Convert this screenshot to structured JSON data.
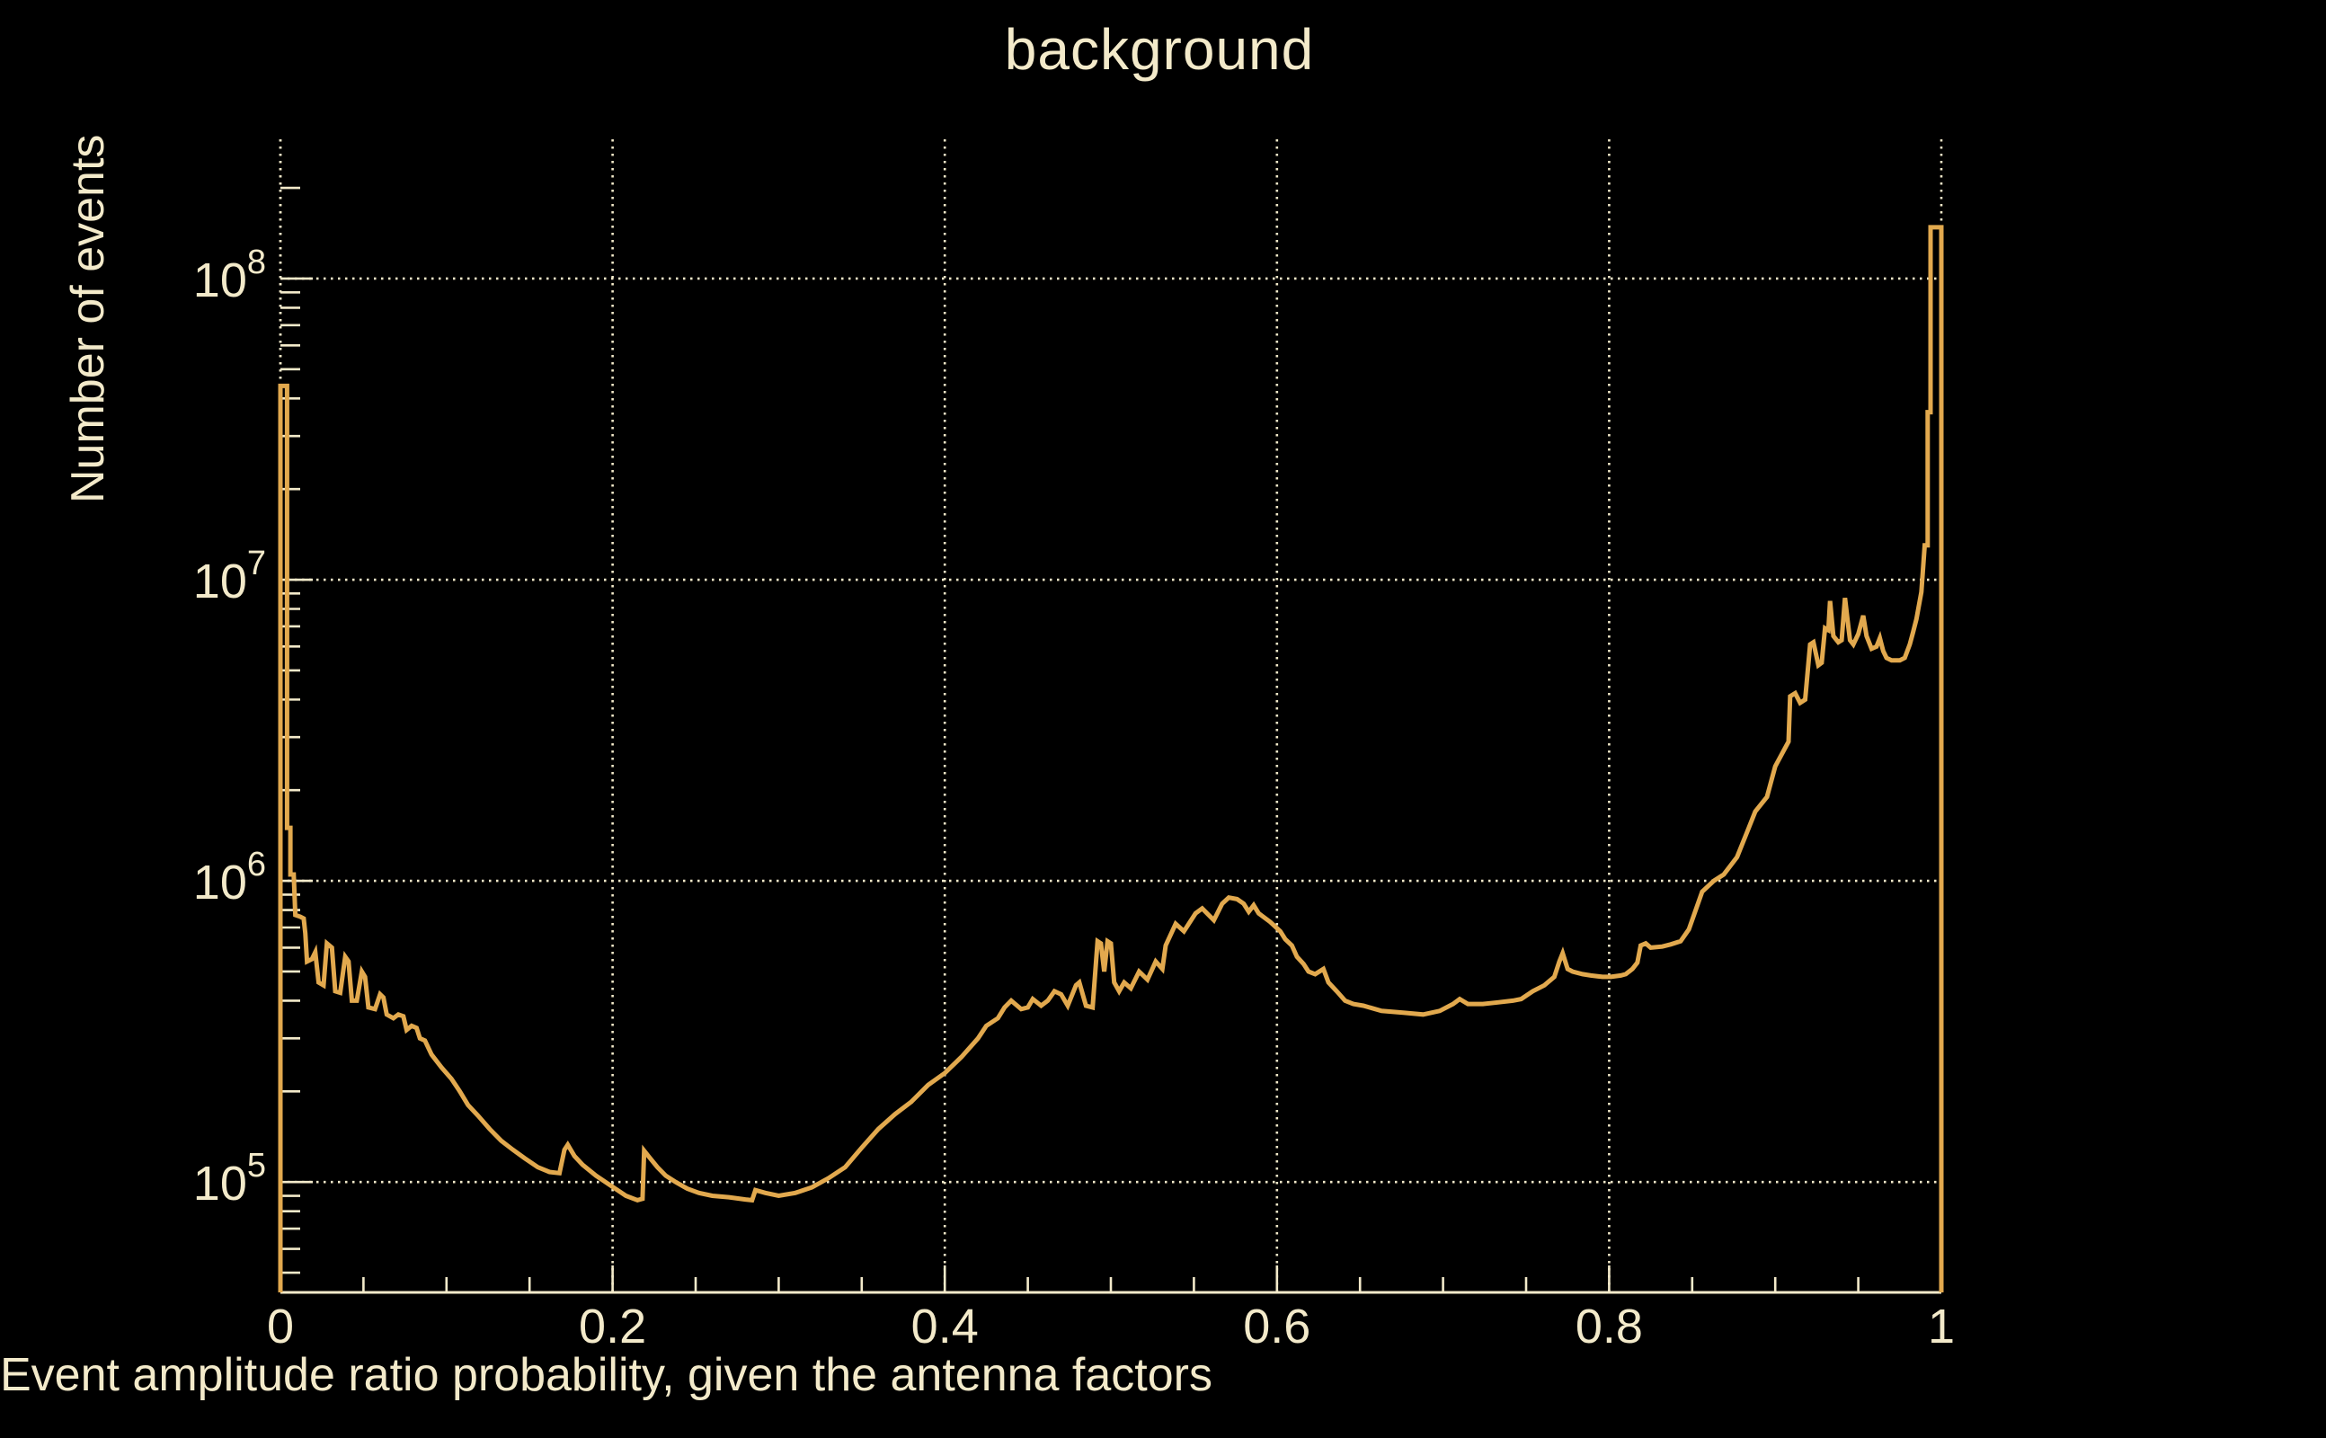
{
  "colors": {
    "background": "#000000",
    "text": "#F3EACA",
    "grid": "#F3EACA",
    "axis": "#F3EACA",
    "series_line": "#E2A94E"
  },
  "chart_data": {
    "type": "line",
    "subtype": "histogram-outline",
    "title": "background",
    "xlabel": "Event amplitude ratio probability, given the antenna factors",
    "ylabel": "Number of events",
    "xlim": [
      0,
      1
    ],
    "ylim": [
      43000,
      290000000
    ],
    "y_scale": "log",
    "grid": "dotted-major-both-axes",
    "legend_position": "none",
    "x_major_ticks": [
      {
        "v": 0.0,
        "label": "0"
      },
      {
        "v": 0.2,
        "label": "0.2"
      },
      {
        "v": 0.4,
        "label": "0.4"
      },
      {
        "v": 0.6,
        "label": "0.6"
      },
      {
        "v": 0.8,
        "label": "0.8"
      },
      {
        "v": 1.0,
        "label": "1"
      }
    ],
    "x_minor_step": 0.05,
    "y_major_ticks": [
      {
        "v": 100000,
        "mantissa": "10",
        "exponent": "5"
      },
      {
        "v": 1000000,
        "mantissa": "10",
        "exponent": "6"
      },
      {
        "v": 10000000,
        "mantissa": "10",
        "exponent": "7"
      },
      {
        "v": 100000000,
        "mantissa": "10",
        "exponent": "8"
      }
    ],
    "series": [
      {
        "name": "background",
        "color": "#E2A94E",
        "points": [
          [
            0,
            43000
          ],
          [
            0,
            44000000
          ],
          [
            0.004,
            44000000
          ],
          [
            0.004,
            1500000
          ],
          [
            0.006,
            1500000
          ],
          [
            0.006,
            1050000
          ],
          [
            0.008,
            1050000
          ],
          [
            0.009,
            770000
          ],
          [
            0.012,
            760000
          ],
          [
            0.014,
            750000
          ],
          [
            0.015,
            670000
          ],
          [
            0.016,
            540000
          ],
          [
            0.019,
            550000
          ],
          [
            0.021,
            580000
          ],
          [
            0.023,
            460000
          ],
          [
            0.026,
            450000
          ],
          [
            0.028,
            620000
          ],
          [
            0.031,
            600000
          ],
          [
            0.033,
            430000
          ],
          [
            0.036,
            425000
          ],
          [
            0.039,
            560000
          ],
          [
            0.041,
            540000
          ],
          [
            0.043,
            400000
          ],
          [
            0.046,
            400000
          ],
          [
            0.049,
            500000
          ],
          [
            0.051,
            480000
          ],
          [
            0.053,
            380000
          ],
          [
            0.057,
            375000
          ],
          [
            0.06,
            420000
          ],
          [
            0.062,
            410000
          ],
          [
            0.064,
            360000
          ],
          [
            0.068,
            350000
          ],
          [
            0.071,
            360000
          ],
          [
            0.074,
            355000
          ],
          [
            0.076,
            320000
          ],
          [
            0.079,
            330000
          ],
          [
            0.082,
            325000
          ],
          [
            0.084,
            300000
          ],
          [
            0.087,
            295000
          ],
          [
            0.091,
            265000
          ],
          [
            0.097,
            240000
          ],
          [
            0.103,
            220000
          ],
          [
            0.108,
            200000
          ],
          [
            0.113,
            180000
          ],
          [
            0.119,
            166000
          ],
          [
            0.126,
            150000
          ],
          [
            0.133,
            137000
          ],
          [
            0.14,
            128000
          ],
          [
            0.147,
            120000
          ],
          [
            0.155,
            112000
          ],
          [
            0.162,
            108000
          ],
          [
            0.168,
            107000
          ],
          [
            0.171,
            128000
          ],
          [
            0.173,
            133000
          ],
          [
            0.177,
            122000
          ],
          [
            0.182,
            114000
          ],
          [
            0.19,
            105000
          ],
          [
            0.198,
            98000
          ],
          [
            0.208,
            90000
          ],
          [
            0.215,
            87000
          ],
          [
            0.218,
            88000
          ],
          [
            0.219,
            127000
          ],
          [
            0.222,
            121000
          ],
          [
            0.227,
            112000
          ],
          [
            0.232,
            105000
          ],
          [
            0.238,
            100000
          ],
          [
            0.245,
            95000
          ],
          [
            0.252,
            92000
          ],
          [
            0.26,
            90000
          ],
          [
            0.27,
            89000
          ],
          [
            0.28,
            87500
          ],
          [
            0.284,
            87000
          ],
          [
            0.286,
            94000
          ],
          [
            0.292,
            92000
          ],
          [
            0.3,
            90000
          ],
          [
            0.31,
            92000
          ],
          [
            0.32,
            96000
          ],
          [
            0.33,
            103000
          ],
          [
            0.34,
            112000
          ],
          [
            0.35,
            130000
          ],
          [
            0.36,
            150000
          ],
          [
            0.37,
            168000
          ],
          [
            0.38,
            185000
          ],
          [
            0.39,
            210000
          ],
          [
            0.4,
            230000
          ],
          [
            0.41,
            260000
          ],
          [
            0.42,
            300000
          ],
          [
            0.425,
            330000
          ],
          [
            0.432,
            350000
          ],
          [
            0.436,
            380000
          ],
          [
            0.44,
            400000
          ],
          [
            0.446,
            375000
          ],
          [
            0.45,
            380000
          ],
          [
            0.453,
            405000
          ],
          [
            0.458,
            385000
          ],
          [
            0.462,
            400000
          ],
          [
            0.466,
            430000
          ],
          [
            0.47,
            420000
          ],
          [
            0.474,
            385000
          ],
          [
            0.479,
            450000
          ],
          [
            0.481,
            460000
          ],
          [
            0.485,
            385000
          ],
          [
            0.489,
            380000
          ],
          [
            0.492,
            630000
          ],
          [
            0.494,
            620000
          ],
          [
            0.496,
            500000
          ],
          [
            0.498,
            630000
          ],
          [
            0.5,
            620000
          ],
          [
            0.502,
            460000
          ],
          [
            0.505,
            430000
          ],
          [
            0.508,
            460000
          ],
          [
            0.512,
            440000
          ],
          [
            0.517,
            500000
          ],
          [
            0.522,
            470000
          ],
          [
            0.527,
            540000
          ],
          [
            0.531,
            510000
          ],
          [
            0.533,
            610000
          ],
          [
            0.539,
            720000
          ],
          [
            0.544,
            680000
          ],
          [
            0.551,
            780000
          ],
          [
            0.555,
            810000
          ],
          [
            0.562,
            740000
          ],
          [
            0.567,
            840000
          ],
          [
            0.571,
            880000
          ],
          [
            0.576,
            870000
          ],
          [
            0.58,
            840000
          ],
          [
            0.583,
            790000
          ],
          [
            0.586,
            830000
          ],
          [
            0.589,
            780000
          ],
          [
            0.596,
            730000
          ],
          [
            0.602,
            680000
          ],
          [
            0.605,
            640000
          ],
          [
            0.609,
            610000
          ],
          [
            0.612,
            560000
          ],
          [
            0.616,
            530000
          ],
          [
            0.619,
            500000
          ],
          [
            0.623,
            490000
          ],
          [
            0.628,
            510000
          ],
          [
            0.631,
            460000
          ],
          [
            0.636,
            430000
          ],
          [
            0.641,
            400000
          ],
          [
            0.646,
            390000
          ],
          [
            0.652,
            385000
          ],
          [
            0.663,
            370000
          ],
          [
            0.676,
            365000
          ],
          [
            0.688,
            360000
          ],
          [
            0.698,
            370000
          ],
          [
            0.706,
            390000
          ],
          [
            0.71,
            405000
          ],
          [
            0.715,
            390000
          ],
          [
            0.724,
            390000
          ],
          [
            0.733,
            395000
          ],
          [
            0.742,
            400000
          ],
          [
            0.747,
            405000
          ],
          [
            0.754,
            430000
          ],
          [
            0.761,
            450000
          ],
          [
            0.767,
            480000
          ],
          [
            0.77,
            540000
          ],
          [
            0.772,
            575000
          ],
          [
            0.775,
            510000
          ],
          [
            0.778,
            500000
          ],
          [
            0.784,
            490000
          ],
          [
            0.789,
            485000
          ],
          [
            0.796,
            480000
          ],
          [
            0.801,
            480000
          ],
          [
            0.807,
            485000
          ],
          [
            0.81,
            490000
          ],
          [
            0.814,
            510000
          ],
          [
            0.817,
            535000
          ],
          [
            0.819,
            610000
          ],
          [
            0.822,
            620000
          ],
          [
            0.825,
            600000
          ],
          [
            0.832,
            605000
          ],
          [
            0.837,
            615000
          ],
          [
            0.843,
            630000
          ],
          [
            0.848,
            690000
          ],
          [
            0.856,
            920000
          ],
          [
            0.863,
            1000000
          ],
          [
            0.869,
            1050000
          ],
          [
            0.877,
            1200000
          ],
          [
            0.883,
            1450000
          ],
          [
            0.888,
            1700000
          ],
          [
            0.895,
            1900000
          ],
          [
            0.9,
            2400000
          ],
          [
            0.905,
            2700000
          ],
          [
            0.908,
            2900000
          ],
          [
            0.909,
            4100000
          ],
          [
            0.912,
            4200000
          ],
          [
            0.915,
            3900000
          ],
          [
            0.918,
            4000000
          ],
          [
            0.921,
            6100000
          ],
          [
            0.923,
            6200000
          ],
          [
            0.926,
            5200000
          ],
          [
            0.928,
            5300000
          ],
          [
            0.93,
            6900000
          ],
          [
            0.932,
            6800000
          ],
          [
            0.933,
            8500000
          ],
          [
            0.935,
            6500000
          ],
          [
            0.938,
            6200000
          ],
          [
            0.94,
            6300000
          ],
          [
            0.942,
            8700000
          ],
          [
            0.944,
            7000000
          ],
          [
            0.945,
            6300000
          ],
          [
            0.947,
            6100000
          ],
          [
            0.95,
            6600000
          ],
          [
            0.953,
            7600000
          ],
          [
            0.955,
            6500000
          ],
          [
            0.958,
            5900000
          ],
          [
            0.961,
            6000000
          ],
          [
            0.963,
            6400000
          ],
          [
            0.965,
            5800000
          ],
          [
            0.967,
            5500000
          ],
          [
            0.97,
            5400000
          ],
          [
            0.975,
            5400000
          ],
          [
            0.978,
            5500000
          ],
          [
            0.981,
            6100000
          ],
          [
            0.983,
            6700000
          ],
          [
            0.985,
            7400000
          ],
          [
            0.988,
            9100000
          ],
          [
            0.99,
            13000000
          ],
          [
            0.9918,
            13000000
          ],
          [
            0.9918,
            36000000
          ],
          [
            0.9935,
            36000000
          ],
          [
            0.9935,
            148000000
          ],
          [
            1.0,
            148000000
          ],
          [
            1.0,
            43000
          ]
        ]
      }
    ]
  }
}
